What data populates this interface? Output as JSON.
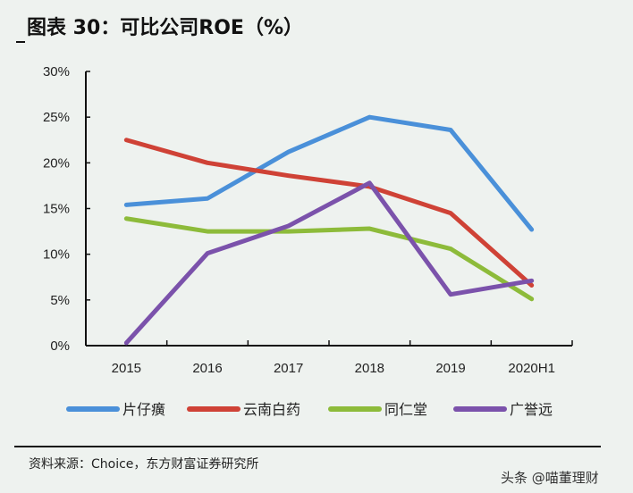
{
  "title": "图表 30：可比公司ROE（%）",
  "source": "资料来源：Choice，东方财富证券研究所",
  "watermark": "头条 @喵董理财",
  "chart_data": {
    "type": "line",
    "title": "图表 30：可比公司ROE（%）",
    "categories": [
      "2015",
      "2016",
      "2017",
      "2018",
      "2019",
      "2020H1"
    ],
    "ylim": [
      0,
      30
    ],
    "yticks": [
      "0%",
      "5%",
      "10%",
      "15%",
      "20%",
      "25%",
      "30%"
    ],
    "grid": false,
    "legend": "bottom",
    "series": [
      {
        "name": "片仔癀",
        "color": "#4a90d9",
        "values": [
          15.4,
          16.1,
          21.2,
          25.0,
          23.6,
          12.7
        ]
      },
      {
        "name": "云南白药",
        "color": "#cf4236",
        "values": [
          22.5,
          20.0,
          18.6,
          17.4,
          14.5,
          6.6
        ]
      },
      {
        "name": "同仁堂",
        "color": "#8dbb3a",
        "values": [
          13.9,
          12.5,
          12.5,
          12.8,
          10.6,
          5.1
        ]
      },
      {
        "name": "广誉远",
        "color": "#7b52ab",
        "values": [
          0.3,
          10.1,
          13.1,
          17.8,
          5.6,
          7.1
        ]
      }
    ]
  }
}
